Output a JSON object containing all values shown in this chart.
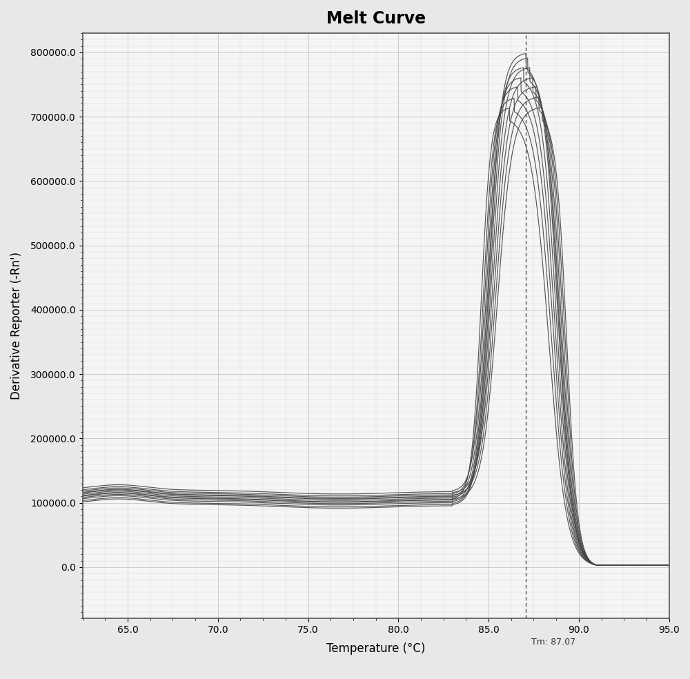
{
  "title": "Melt Curve",
  "xlabel": "Temperature (°C)",
  "ylabel": "Derivative Reporter (-Rn')",
  "xlim": [
    62.5,
    95.0
  ],
  "ylim": [
    -80000,
    830000
  ],
  "yticks": [
    0,
    100000,
    200000,
    300000,
    400000,
    500000,
    600000,
    700000,
    800000
  ],
  "ytick_labels": [
    "0.0",
    "100000.0",
    "200000.0",
    "300000.0",
    "400000.0",
    "500000.0",
    "600000.0",
    "700000.0",
    "800000.0"
  ],
  "xticks": [
    65.0,
    70.0,
    75.0,
    80.0,
    85.0,
    90.0,
    95.0
  ],
  "xtick_labels": [
    "65.0",
    "70.0",
    "75.0",
    "80.0",
    "85.0",
    "90.0",
    "95.0"
  ],
  "tm_line_x": 87.07,
  "tm_label": "Tm: 87.07",
  "background_color": "#e8e8e8",
  "plot_bg_color": "#f5f5f5",
  "line_color": "#444444",
  "grid_minor_color": "#cccccc",
  "grid_major_color": "#aaaaaa",
  "title_fontsize": 17,
  "axis_label_fontsize": 12,
  "tick_fontsize": 10,
  "n_curves": 12,
  "peak_x_base": 87.07,
  "peak_offsets": [
    -0.9,
    -0.65,
    -0.45,
    -0.28,
    -0.12,
    0.0,
    0.1,
    0.22,
    0.38,
    0.55,
    0.72,
    0.9
  ],
  "peak_heights": [
    715000,
    730000,
    748000,
    762000,
    778000,
    800000,
    793000,
    778000,
    762000,
    748000,
    732000,
    716000
  ],
  "baseline_starts": [
    108000,
    115000,
    120000,
    112000,
    105000,
    100000,
    98000,
    103000,
    110000,
    117000,
    113000,
    107000
  ]
}
